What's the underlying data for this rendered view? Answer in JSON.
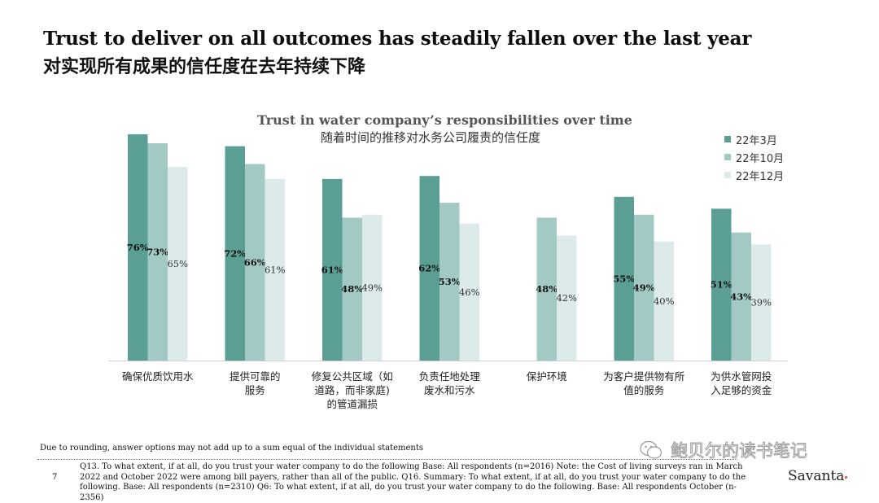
{
  "header": {
    "title_en": "Trust to deliver on all outcomes has steadily fallen over the last year",
    "title_zh": "对实现所有成果的信任度在去年持续下降"
  },
  "chart_data": {
    "type": "bar",
    "title": "Trust in water company’s responsibilities over time",
    "subtitle": "随着时间的推移对水务公司履责的信任度",
    "categories": [
      [
        "确保优质饮用水"
      ],
      [
        "提供可靠的",
        "服务"
      ],
      [
        "修复公共区域（如",
        "道路，而非家庭)",
        "的管道漏损"
      ],
      [
        "负责任地处理",
        "废水和污水"
      ],
      [
        "保护环境"
      ],
      [
        "为客户提供物有所",
        "值的服务"
      ],
      [
        "为供水管网投",
        "入足够的资金"
      ]
    ],
    "series": [
      {
        "name": "22年3月",
        "color": "#5b9e94",
        "values": [
          76,
          72,
          61,
          62,
          null,
          55,
          51
        ],
        "labels": [
          "76%",
          "72%",
          "61%",
          "62%",
          "",
          "55%",
          "51%"
        ]
      },
      {
        "name": "22年10月",
        "color": "#a2c9c4",
        "values": [
          73,
          66,
          48,
          53,
          48,
          49,
          43
        ],
        "labels": [
          "73%",
          "66%",
          "48%",
          "53%",
          "48%",
          "49%",
          "43%"
        ]
      },
      {
        "name": "22年12月",
        "color": "#dcebea",
        "values": [
          65,
          61,
          49,
          46,
          42,
          40,
          39
        ],
        "labels": [
          "65%",
          "61%",
          "49%",
          "46%",
          "42%",
          "40%",
          "39%"
        ]
      }
    ],
    "ylim": [
      0,
      76
    ],
    "legend_position": "top-right",
    "grid": false
  },
  "footer": {
    "note": "Due to rounding, answer options may not add up to a sum equal of the individual statements",
    "page_number": "7",
    "footnote": "Q13. To what extent, if at all, do you trust your water company  to do the following Base: All respondents (n=2016) Note: the Cost of living surveys ran in March 2022 and October 2022 were among bill payers, rather than all of the public. Q16. Summary: To what extent, if at all, do you trust your water company to do the following. Base: All respondents (n=2310) Q6: To what extent, if at all, do you trust your water company to do the following. Base: All respondents October (n-2356)",
    "watermark": "鲍贝尔的读书笔记",
    "brand": "Savanta"
  }
}
